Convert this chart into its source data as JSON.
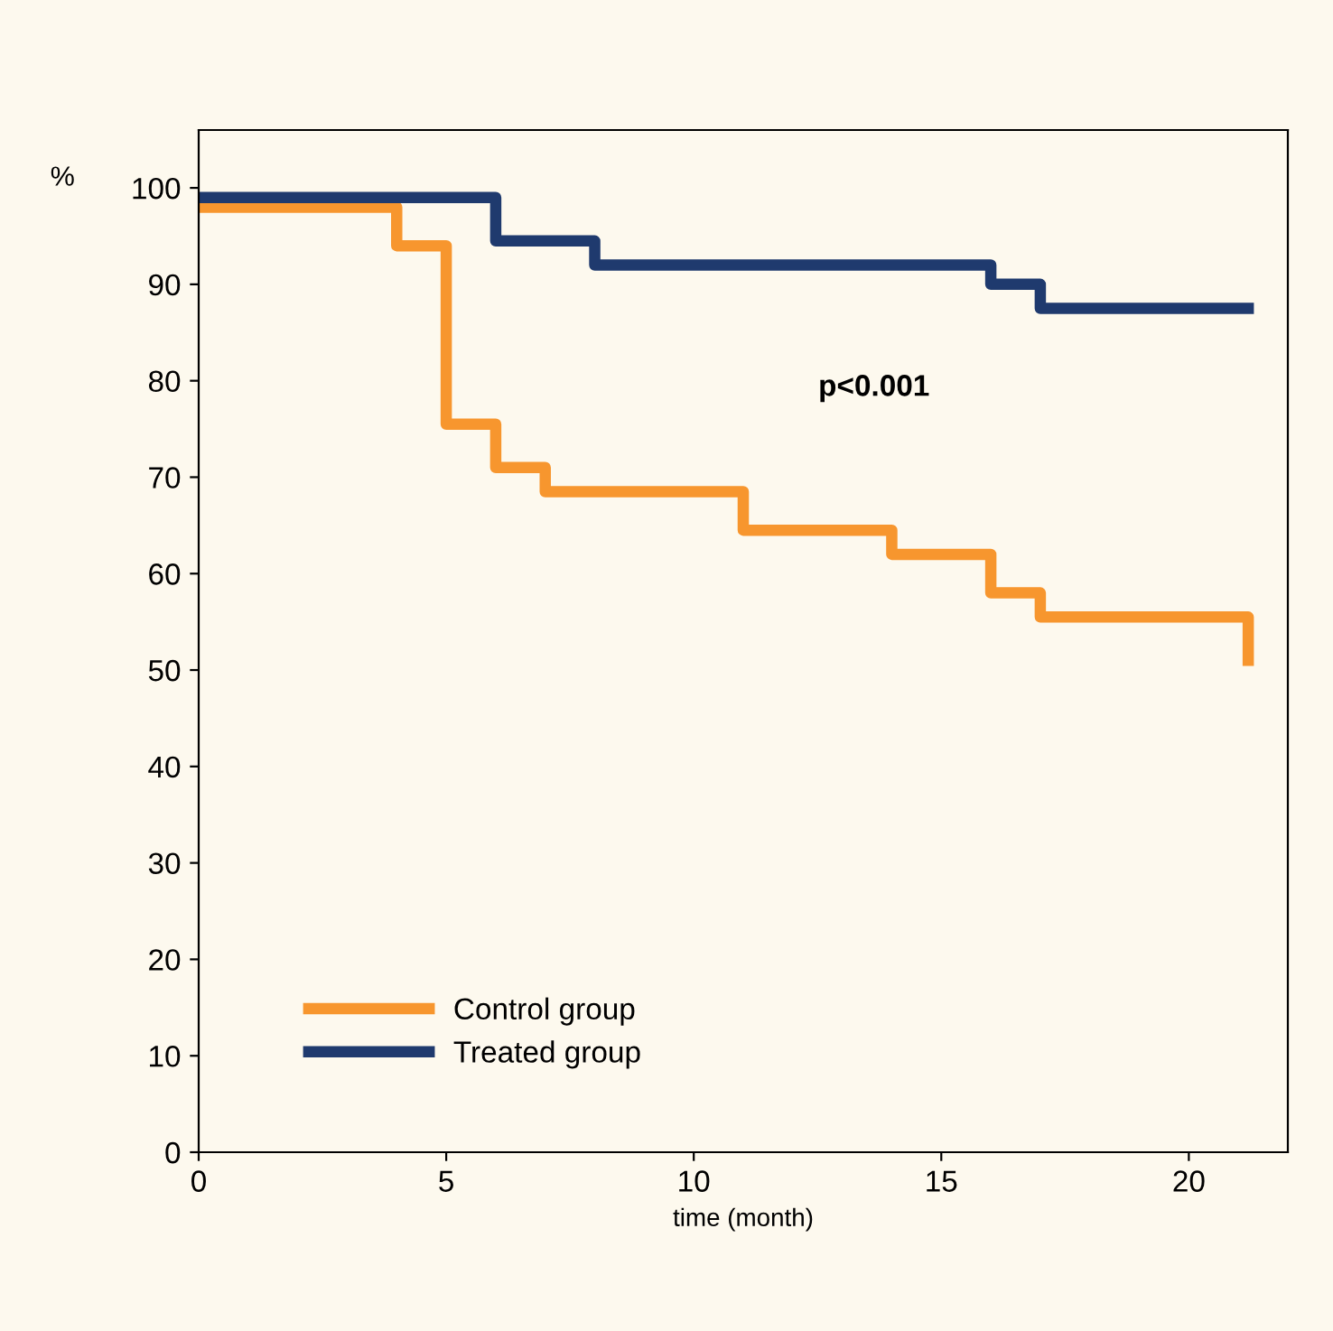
{
  "chart_data": {
    "type": "step",
    "xlabel": "time (month)",
    "ylabel": "%",
    "series": [
      {
        "name": "Control group",
        "color": "#f7962e",
        "x": [
          0,
          4,
          5,
          6,
          7,
          11,
          14,
          16,
          17,
          21.2,
          21.2
        ],
        "values": [
          98,
          94,
          75.5,
          71,
          68.5,
          64.5,
          62,
          58,
          55.5,
          55.5,
          51
        ]
      },
      {
        "name": "Treated group",
        "color": "#1f3a6e",
        "x": [
          0,
          6,
          8,
          16,
          17,
          21.2
        ],
        "values": [
          99,
          94.5,
          92,
          90,
          87.5,
          87.5
        ]
      }
    ],
    "xlim": [
      0,
      22
    ],
    "xticks": [
      0,
      5,
      10,
      15,
      20
    ],
    "ylim": [
      0,
      106
    ],
    "yticks": [
      0,
      10,
      20,
      30,
      40,
      50,
      60,
      70,
      80,
      90,
      100
    ],
    "annotations": [
      "p<0.001"
    ],
    "legend": "bottom left",
    "grid": false,
    "marker": "none",
    "line_style": "solid"
  }
}
